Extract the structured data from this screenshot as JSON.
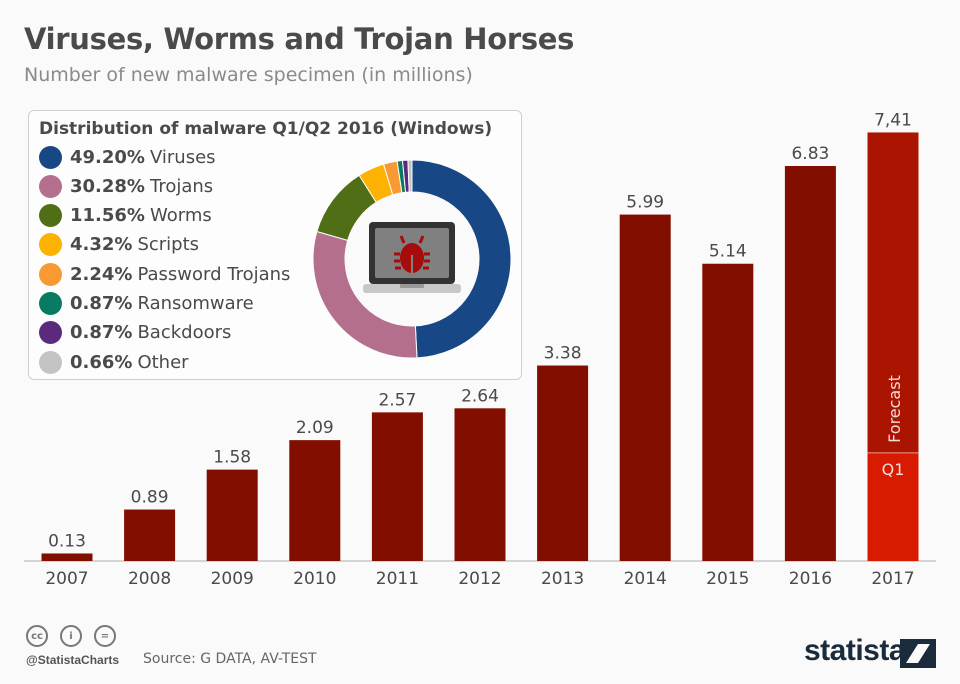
{
  "header": {
    "title": "Viruses, Worms and Trojan Horses",
    "subtitle": "Number of new malware specimen (in millions)"
  },
  "chart_data": [
    {
      "type": "bar",
      "categories": [
        "2007",
        "2008",
        "2009",
        "2010",
        "2011",
        "2012",
        "2013",
        "2014",
        "2015",
        "2016",
        "2017"
      ],
      "values": [
        0.13,
        0.89,
        1.58,
        2.09,
        2.57,
        2.64,
        3.38,
        5.99,
        5.14,
        6.83,
        7.41
      ],
      "value_labels": [
        "0.13",
        "0.89",
        "1.58",
        "2.09",
        "2.57",
        "2.64",
        "3.38",
        "5.99",
        "5.14",
        "6.83",
        "7,41"
      ],
      "ylim": [
        0,
        8.5
      ],
      "grid": false,
      "colors": {
        "bar": "#820e00",
        "forecast": "#ab1400",
        "q1": "#d81a00"
      },
      "forecast_2017": {
        "forecast_label": "Forecast",
        "q1_label": "Q1",
        "q1_value": 1.87
      }
    },
    {
      "type": "pie",
      "title": "Distribution of malware Q1/Q2 2016 (Windows)",
      "legend_placement": "left",
      "slices": [
        {
          "pct": "49.20%",
          "label": "Viruses",
          "value": 49.2,
          "color": "#184785"
        },
        {
          "pct": "30.28%",
          "label": "Trojans",
          "value": 30.28,
          "color": "#b36f8b"
        },
        {
          "pct": "11.56%",
          "label": "Worms",
          "value": 11.56,
          "color": "#4f6e16"
        },
        {
          "pct": "4.32%",
          "label": "Scripts",
          "value": 4.32,
          "color": "#fdb100"
        },
        {
          "pct": "2.24%",
          "label": "Password Trojans",
          "value": 2.24,
          "color": "#f79a33"
        },
        {
          "pct": "0.87%",
          "label": "Ransomware",
          "value": 0.87,
          "color": "#067b62"
        },
        {
          "pct": "0.87%",
          "label": "Backdoors",
          "value": 0.87,
          "color": "#5b2a7c"
        },
        {
          "pct": "0.66%",
          "label": "Other",
          "value": 0.66,
          "color": "#c3c3c3"
        }
      ],
      "center_icon": "laptop-bug-icon"
    }
  ],
  "footer": {
    "handle": "@StatistaCharts",
    "source": "Source: G DATA, AV-TEST",
    "logo": "statista",
    "license_icons": [
      "cc-icon",
      "by-icon",
      "nd-icon"
    ]
  }
}
